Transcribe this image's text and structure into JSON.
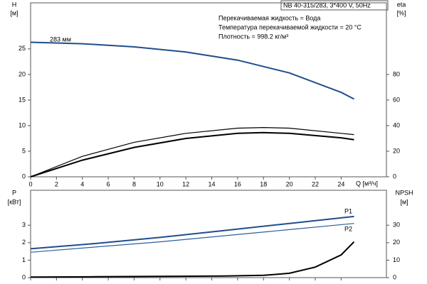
{
  "chart_data": [
    {
      "type": "line",
      "title": "NB 40-315/283, 3*400 V, 50Hz",
      "info": [
        "Перекачиваемая жидкость = Вода",
        "Температура перекачиваемой жидкости = 20 °C",
        "Плотность = 998.2 кг/м³"
      ],
      "annotation": "283 мм",
      "ylabel": "H",
      "yunit": "[м]",
      "y2label": "eta",
      "y2unit": "[%]",
      "xlabel": "Q [м³/ч]",
      "xlim": [
        0,
        27.5
      ],
      "xticks": [
        0,
        2,
        4,
        6,
        8,
        10,
        12,
        14,
        16,
        18,
        20,
        22,
        24
      ],
      "ylim": [
        0,
        34
      ],
      "yticks": [
        0,
        5,
        10,
        15,
        20,
        25
      ],
      "y2lim": [
        0,
        136
      ],
      "y2ticks": [
        0,
        20,
        40,
        60,
        80
      ],
      "series": [
        {
          "color": "#1f4e8c",
          "axis": "y",
          "x": [
            0,
            4,
            8,
            12,
            16,
            20,
            24,
            25
          ],
          "values": [
            26.3,
            26.0,
            25.4,
            24.4,
            22.8,
            20.3,
            16.5,
            15.2
          ]
        },
        {
          "color": "#000000",
          "axis": "y2",
          "x": [
            0,
            4,
            8,
            12,
            16,
            18,
            20,
            24,
            25
          ],
          "values": [
            0,
            16,
            27,
            34,
            38,
            38.5,
            38,
            34,
            33
          ]
        },
        {
          "color": "#000000",
          "axis": "y2",
          "x": [
            0,
            4,
            8,
            12,
            16,
            18,
            20,
            24,
            25
          ],
          "values": [
            0,
            13,
            23,
            30,
            34,
            34.5,
            34,
            30.5,
            29
          ]
        }
      ]
    },
    {
      "type": "line",
      "ylabel": "P",
      "yunit": "[кВт]",
      "y2label": "NPSH",
      "y2unit": "[м]",
      "xlim": [
        0,
        27.5
      ],
      "ylim": [
        0,
        5
      ],
      "yticks": [
        0,
        1,
        2,
        3
      ],
      "y2lim": [
        0,
        50
      ],
      "y2ticks": [
        0,
        10,
        20,
        30
      ],
      "series": [
        {
          "name": "P1",
          "color": "#1f4e8c",
          "axis": "y",
          "x": [
            0,
            5,
            10,
            15,
            20,
            25
          ],
          "values": [
            1.65,
            1.95,
            2.3,
            2.7,
            3.1,
            3.5
          ]
        },
        {
          "name": "P2",
          "color": "#2c5f9e",
          "axis": "y",
          "x": [
            0,
            5,
            10,
            15,
            20,
            25
          ],
          "values": [
            1.45,
            1.75,
            2.05,
            2.4,
            2.75,
            3.1
          ]
        },
        {
          "color": "#000000",
          "axis": "y2",
          "x": [
            0,
            5,
            10,
            15,
            18,
            20,
            22,
            24,
            25
          ],
          "values": [
            0.3,
            0.5,
            0.7,
            0.9,
            1.3,
            2.5,
            6,
            13,
            20.5
          ]
        }
      ]
    }
  ]
}
